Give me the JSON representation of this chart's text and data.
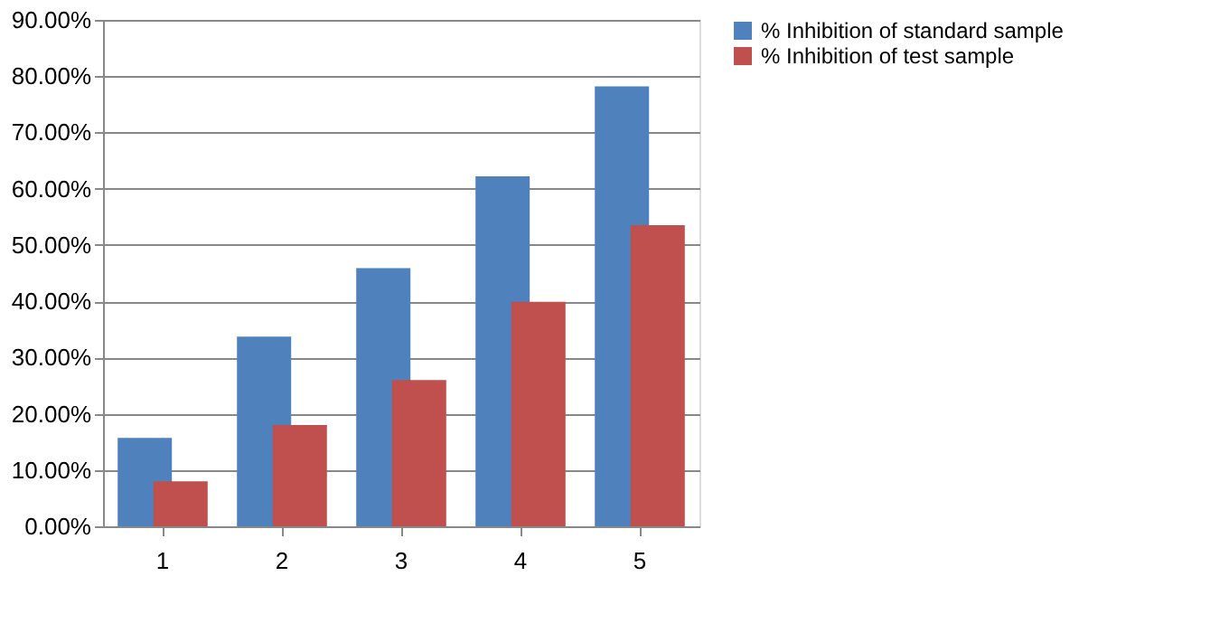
{
  "chart_data": {
    "type": "bar",
    "categories": [
      "1",
      "2",
      "3",
      "4",
      "5"
    ],
    "series": [
      {
        "name": "% Inhibition of standard sample",
        "color": "#4f81bd",
        "values": [
          15.7,
          33.7,
          45.9,
          62.2,
          78.2
        ]
      },
      {
        "name": "% Inhibition of test sample",
        "color": "#c0504d",
        "values": [
          8.0,
          18.0,
          26.0,
          39.9,
          53.5
        ]
      }
    ],
    "ylim": [
      0,
      90
    ],
    "yticks": [
      {
        "value": 0,
        "label": "0.00%"
      },
      {
        "value": 10,
        "label": "10.00%"
      },
      {
        "value": 20,
        "label": "20.00%"
      },
      {
        "value": 30,
        "label": "30.00%"
      },
      {
        "value": 40,
        "label": "40.00%"
      },
      {
        "value": 50,
        "label": "50.00%"
      },
      {
        "value": 60,
        "label": "60.00%"
      },
      {
        "value": 70,
        "label": "70.00%"
      },
      {
        "value": 80,
        "label": "80.00%"
      },
      {
        "value": 90,
        "label": "90.00%"
      }
    ],
    "grid": "y",
    "legend": "right"
  }
}
